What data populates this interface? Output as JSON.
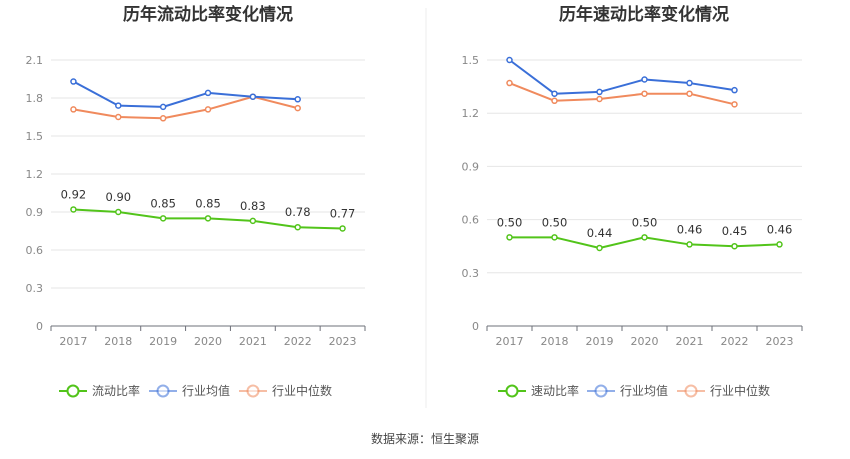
{
  "source_label": "数据来源：恒生聚源",
  "chart_data": [
    {
      "type": "line",
      "title": "历年流动比率变化情况",
      "categories": [
        "2017",
        "2018",
        "2019",
        "2020",
        "2021",
        "2022",
        "2023"
      ],
      "yticks": [
        "0",
        "0.3",
        "0.6",
        "0.9",
        "1.2",
        "1.5",
        "1.8",
        "2.1"
      ],
      "ylim": [
        0,
        2.1
      ],
      "grid": true,
      "legend_position": "bottom",
      "series": [
        {
          "name": "流动比率",
          "color": "#52c41a",
          "values": [
            0.92,
            0.9,
            0.85,
            0.85,
            0.83,
            0.78,
            0.77
          ],
          "labels": [
            "0.92",
            "0.90",
            "0.85",
            "0.85",
            "0.83",
            "0.78",
            "0.77"
          ]
        },
        {
          "name": "行业均值",
          "color": "#3a6fd8",
          "values": [
            1.93,
            1.74,
            1.73,
            1.84,
            1.81,
            1.79,
            null
          ]
        },
        {
          "name": "行业中位数",
          "color": "#f08a5d",
          "values": [
            1.71,
            1.65,
            1.64,
            1.71,
            1.81,
            1.72,
            null
          ]
        }
      ]
    },
    {
      "type": "line",
      "title": "历年速动比率变化情况",
      "categories": [
        "2017",
        "2018",
        "2019",
        "2020",
        "2021",
        "2022",
        "2023"
      ],
      "yticks": [
        "0",
        "0.3",
        "0.6",
        "0.9",
        "1.2",
        "1.5"
      ],
      "ylim": [
        0,
        1.5
      ],
      "grid": true,
      "legend_position": "bottom",
      "series": [
        {
          "name": "速动比率",
          "color": "#52c41a",
          "values": [
            0.5,
            0.5,
            0.44,
            0.5,
            0.46,
            0.45,
            0.46
          ],
          "labels": [
            "0.50",
            "0.50",
            "0.44",
            "0.50",
            "0.46",
            "0.45",
            "0.46"
          ]
        },
        {
          "name": "行业均值",
          "color": "#3a6fd8",
          "values": [
            1.5,
            1.31,
            1.32,
            1.39,
            1.37,
            1.33,
            null
          ]
        },
        {
          "name": "行业中位数",
          "color": "#f08a5d",
          "values": [
            1.37,
            1.27,
            1.28,
            1.31,
            1.31,
            1.25,
            null
          ]
        }
      ]
    }
  ]
}
